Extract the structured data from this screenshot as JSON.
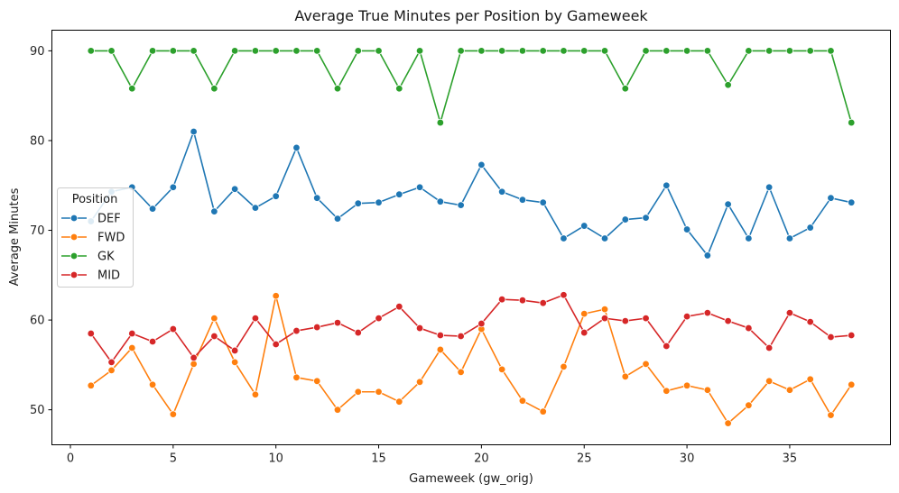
{
  "chart_data": {
    "type": "line",
    "title": "Average True Minutes per Position by Gameweek",
    "xlabel": "Gameweek (gw_orig)",
    "ylabel": "Average Minutes",
    "xlim": [
      -0.9,
      39.9
    ],
    "ylim": [
      46.1,
      92.3
    ],
    "xticks": [
      0,
      5,
      10,
      15,
      20,
      25,
      30,
      35
    ],
    "yticks": [
      50,
      60,
      70,
      80,
      90
    ],
    "grid": false,
    "markers": true,
    "legend": {
      "title": "Position",
      "position": "center-left"
    },
    "x": [
      1,
      2,
      3,
      4,
      5,
      6,
      7,
      8,
      9,
      10,
      11,
      12,
      13,
      14,
      15,
      16,
      17,
      18,
      19,
      20,
      21,
      22,
      23,
      24,
      25,
      26,
      27,
      28,
      29,
      30,
      31,
      32,
      33,
      34,
      35,
      36,
      37,
      38
    ],
    "series": [
      {
        "name": "DEF",
        "color": "#1f77b4",
        "values": [
          71.0,
          74.3,
          74.8,
          72.4,
          74.8,
          81.0,
          72.1,
          74.6,
          72.5,
          73.8,
          79.2,
          73.6,
          71.3,
          73.0,
          73.1,
          74.0,
          74.8,
          73.2,
          72.8,
          77.3,
          74.3,
          73.4,
          73.1,
          69.1,
          70.5,
          69.1,
          71.2,
          71.4,
          75.0,
          70.1,
          67.2,
          72.9,
          69.1,
          74.8,
          69.1,
          70.3,
          73.6,
          73.1
        ]
      },
      {
        "name": "FWD",
        "color": "#ff7f0e",
        "values": [
          52.7,
          54.4,
          56.9,
          52.8,
          49.5,
          55.1,
          60.2,
          55.3,
          51.7,
          62.7,
          53.6,
          53.2,
          50.0,
          52.0,
          52.0,
          50.9,
          53.1,
          56.7,
          54.2,
          59.0,
          54.5,
          51.0,
          49.8,
          54.8,
          60.7,
          61.2,
          53.7,
          55.1,
          52.1,
          52.7,
          52.2,
          48.5,
          50.5,
          53.2,
          52.2,
          53.4,
          49.4,
          52.8
        ]
      },
      {
        "name": "GK",
        "color": "#2ca02c",
        "values": [
          90.0,
          90.0,
          85.8,
          90.0,
          90.0,
          90.0,
          85.8,
          90.0,
          90.0,
          90.0,
          90.0,
          90.0,
          85.8,
          90.0,
          90.0,
          85.8,
          90.0,
          82.0,
          90.0,
          90.0,
          90.0,
          90.0,
          90.0,
          90.0,
          90.0,
          90.0,
          85.8,
          90.0,
          90.0,
          90.0,
          90.0,
          86.2,
          90.0,
          90.0,
          90.0,
          90.0,
          90.0,
          82.0
        ]
      },
      {
        "name": "MID",
        "color": "#d62728",
        "values": [
          58.5,
          55.3,
          58.5,
          57.6,
          59.0,
          55.8,
          58.2,
          56.6,
          60.2,
          57.3,
          58.8,
          59.2,
          59.7,
          58.6,
          60.2,
          61.5,
          59.1,
          58.3,
          58.2,
          59.6,
          62.3,
          62.2,
          61.9,
          62.8,
          58.6,
          60.2,
          59.9,
          60.2,
          57.1,
          60.4,
          60.8,
          59.9,
          59.1,
          56.9,
          60.8,
          59.8,
          58.1,
          58.3
        ]
      }
    ]
  }
}
